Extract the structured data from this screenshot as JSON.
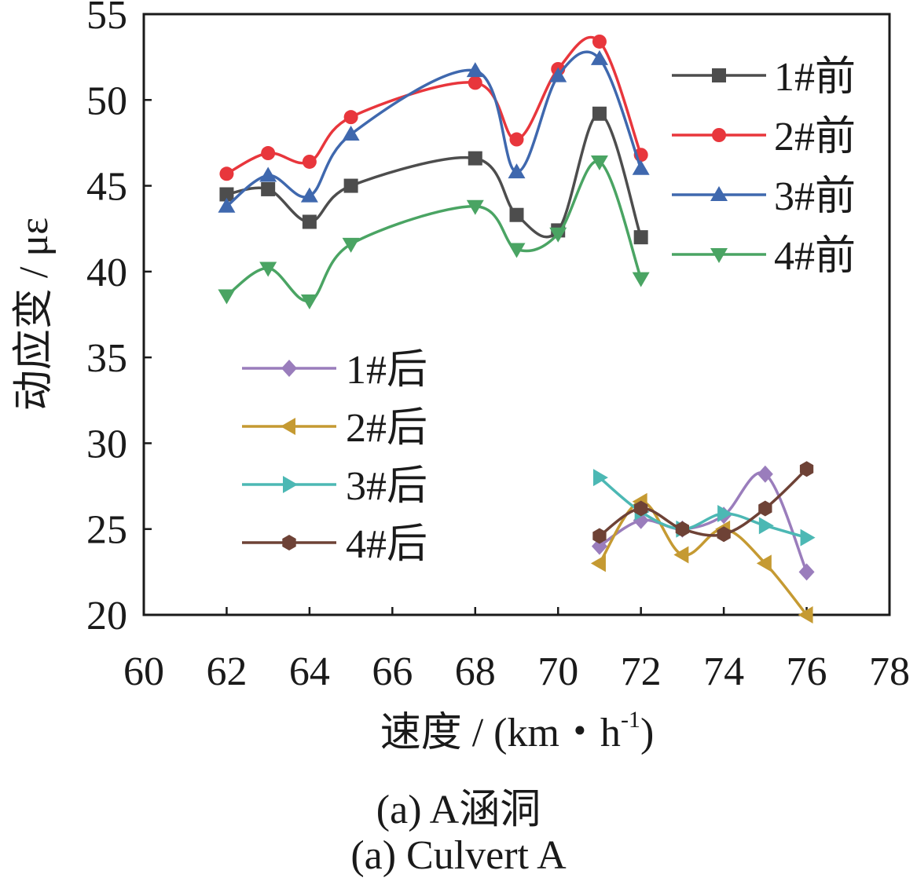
{
  "chart_data": {
    "type": "line",
    "xlabel": "速度 / (km・h",
    "xlabel_sup": "-1",
    "xlabel_end": ")",
    "ylabel": "动应变 / με",
    "xlim": [
      60,
      78
    ],
    "ylim": [
      20,
      55
    ],
    "xticks": [
      60,
      62,
      64,
      66,
      68,
      70,
      72,
      74,
      76,
      78
    ],
    "yticks": [
      20,
      25,
      30,
      35,
      40,
      45,
      50,
      55
    ],
    "grid": false,
    "legend_placement": [
      "right (前 series)",
      "middle-left (后 series)"
    ],
    "series": [
      {
        "name": "1#前",
        "color": "#4d4d4d",
        "marker": "square",
        "x": [
          62,
          63,
          64,
          65,
          68,
          69,
          70,
          71,
          72
        ],
        "y": [
          44.5,
          44.8,
          42.9,
          45.0,
          46.6,
          43.3,
          42.4,
          49.2,
          42.0
        ]
      },
      {
        "name": "2#前",
        "color": "#e8363c",
        "marker": "circle",
        "x": [
          62,
          63,
          64,
          65,
          68,
          69,
          70,
          71,
          72
        ],
        "y": [
          45.7,
          46.9,
          46.4,
          49.0,
          51.0,
          47.7,
          51.8,
          53.4,
          46.8
        ]
      },
      {
        "name": "3#前",
        "color": "#3f68ae",
        "marker": "triangle-up",
        "x": [
          62,
          63,
          64,
          65,
          68,
          69,
          70,
          71,
          72
        ],
        "y": [
          43.8,
          45.6,
          44.4,
          48.0,
          51.7,
          45.8,
          51.4,
          52.4,
          46.0
        ]
      },
      {
        "name": "4#前",
        "color": "#4aa463",
        "marker": "triangle-down",
        "x": [
          62,
          63,
          64,
          65,
          68,
          69,
          70,
          71,
          72
        ],
        "y": [
          38.6,
          40.2,
          38.3,
          41.6,
          43.8,
          41.3,
          42.2,
          46.4,
          39.6
        ]
      },
      {
        "name": "1#后",
        "color": "#9a7dbc",
        "marker": "diamond",
        "x": [
          71,
          72,
          73,
          74,
          75,
          76
        ],
        "y": [
          24.0,
          25.5,
          25.0,
          25.8,
          28.2,
          22.5
        ]
      },
      {
        "name": "2#后",
        "color": "#c59a32",
        "marker": "triangle-left",
        "x": [
          71,
          72,
          73,
          74,
          75,
          76
        ],
        "y": [
          23.0,
          26.6,
          23.5,
          25.0,
          23.0,
          20.0
        ]
      },
      {
        "name": "3#后",
        "color": "#4cb8b4",
        "marker": "triangle-right",
        "x": [
          71,
          72,
          73,
          74,
          75,
          76
        ],
        "y": [
          28.0,
          26.0,
          25.0,
          25.9,
          25.2,
          24.5
        ]
      },
      {
        "name": "4#后",
        "color": "#6e4236",
        "marker": "hexagon",
        "x": [
          71,
          72,
          73,
          74,
          75,
          76
        ],
        "y": [
          24.6,
          26.2,
          25.0,
          24.7,
          26.2,
          28.5
        ]
      }
    ]
  },
  "caption": {
    "line1": "(a)  A涵洞",
    "line2": "(a)  Culvert A"
  }
}
